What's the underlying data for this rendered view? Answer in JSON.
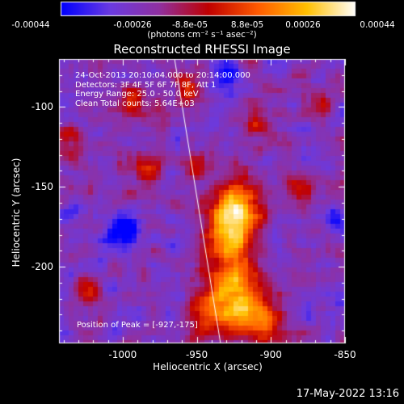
{
  "colorbar": {
    "ticks": [
      "-0.00044",
      "-0.00026",
      "-8.8e-05",
      "8.8e-05",
      "0.00026",
      "0.00044"
    ],
    "unit": "(photons cm⁻² s⁻¹ asec⁻²)"
  },
  "title": "Reconstructed RHESSI Image",
  "info_lines": [
    "24-Oct-2013 20:10:04.000 to 20:14:00.000",
    "Detectors: 3F 4F 5F 6F 7F 8F, Att 1",
    "Energy Range: 25.0 - 50.0 keV",
    "Clean     Total counts: 5.64E+03"
  ],
  "peak_label": "Position of Peak = [-927,-175]",
  "footer_date": "17-May-2022 13:16",
  "chart_data": {
    "type": "heatmap",
    "title": "Reconstructed RHESSI Image",
    "xlabel": "Heliocentric X (arcsec)",
    "ylabel": "Heliocentric Y (arcsec)",
    "xlim": [
      -1043,
      -850
    ],
    "ylim": [
      -248,
      -70
    ],
    "x_ticks": [
      "-1000",
      "-950",
      "-900",
      "-850"
    ],
    "x_tick_values": [
      -1000,
      -950,
      -900,
      -850
    ],
    "y_ticks": [
      "-100",
      "-150",
      "-200"
    ],
    "y_tick_values": [
      -100,
      -150,
      -200
    ],
    "value_range": [
      -0.00044,
      0.00044
    ],
    "peak": [
      -927,
      -175
    ],
    "limb_line": [
      [
        -965,
        -70
      ],
      [
        -934,
        -248
      ]
    ],
    "colormap": [
      "#0000ff",
      "#6a3ae0",
      "#9030a0",
      "#c00000",
      "#ff5a00",
      "#ffc000",
      "#ffffff"
    ],
    "sources": [
      {
        "x": -927,
        "y": -175,
        "amp": 1.0,
        "sigma": 11
      },
      {
        "x": -922,
        "y": -160,
        "amp": 0.75,
        "sigma": 12
      },
      {
        "x": -930,
        "y": -205,
        "amp": 0.75,
        "sigma": 13
      },
      {
        "x": -918,
        "y": -225,
        "amp": 0.7,
        "sigma": 12
      },
      {
        "x": -905,
        "y": -236,
        "amp": 0.55,
        "sigma": 10
      },
      {
        "x": -940,
        "y": -232,
        "amp": 0.6,
        "sigma": 10
      },
      {
        "x": -956,
        "y": -90,
        "amp": 0.55,
        "sigma": 6
      },
      {
        "x": -993,
        "y": -98,
        "amp": 0.5,
        "sigma": 8
      },
      {
        "x": -985,
        "y": -140,
        "amp": 0.45,
        "sigma": 8
      },
      {
        "x": -952,
        "y": -135,
        "amp": 0.35,
        "sigma": 7
      },
      {
        "x": -912,
        "y": -110,
        "amp": 0.45,
        "sigma": 7
      },
      {
        "x": -880,
        "y": -150,
        "amp": 0.45,
        "sigma": 8
      },
      {
        "x": -865,
        "y": -100,
        "amp": 0.35,
        "sigma": 7
      },
      {
        "x": -1035,
        "y": -120,
        "amp": 0.35,
        "sigma": 7
      },
      {
        "x": -1025,
        "y": -215,
        "amp": 0.4,
        "sigma": 7
      },
      {
        "x": -1000,
        "y": -178,
        "amp": -0.55,
        "sigma": 9
      },
      {
        "x": -930,
        "y": -80,
        "amp": -0.4,
        "sigma": 7
      },
      {
        "x": -855,
        "y": -170,
        "amp": -0.35,
        "sigma": 6
      },
      {
        "x": -1035,
        "y": -165,
        "amp": -0.3,
        "sigma": 6
      }
    ]
  }
}
